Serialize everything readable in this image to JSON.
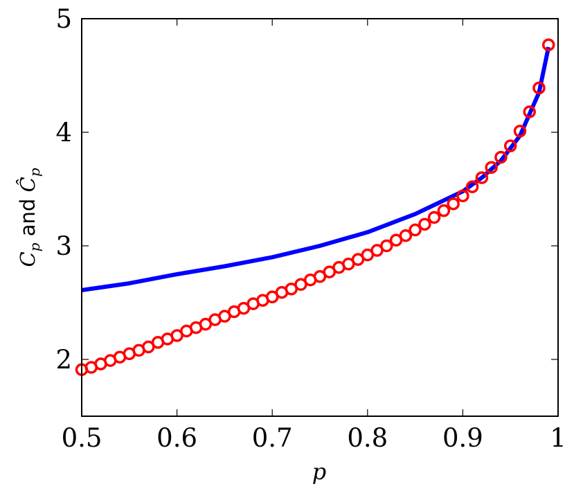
{
  "chart_data": {
    "type": "line",
    "xlabel": "p",
    "ylabel": "C_p and Ĉ_p",
    "ylabel_parts": {
      "c1": "C",
      "sub1": "p",
      "mid": " and ",
      "c2": "Ĉ",
      "sub2": "p"
    },
    "xlim": [
      0.5,
      0.99
    ],
    "ylim": [
      1.5,
      5.0
    ],
    "x_ticks": [
      0.5,
      0.6,
      0.7,
      0.8,
      0.9,
      1
    ],
    "x_tick_labels": [
      "0.5",
      "0.6",
      "0.7",
      "0.8",
      "0.9",
      "1"
    ],
    "y_ticks": [
      2,
      3,
      4,
      5
    ],
    "y_tick_labels": [
      "2",
      "3",
      "4",
      "5"
    ],
    "grid": false,
    "legend": false,
    "series": [
      {
        "style": "line",
        "color": "#0000ff",
        "x": [
          0.5,
          0.55,
          0.6,
          0.65,
          0.7,
          0.75,
          0.8,
          0.85,
          0.9,
          0.92,
          0.94,
          0.96,
          0.98,
          0.99
        ],
        "y": [
          2.61,
          2.67,
          2.75,
          2.82,
          2.9,
          3.0,
          3.12,
          3.28,
          3.48,
          3.6,
          3.75,
          3.97,
          4.35,
          4.75
        ]
      },
      {
        "style": "circle-markers",
        "color": "#ff0000",
        "x": [
          0.5,
          0.51,
          0.52,
          0.53,
          0.54,
          0.55,
          0.56,
          0.57,
          0.58,
          0.59,
          0.6,
          0.61,
          0.62,
          0.63,
          0.64,
          0.65,
          0.66,
          0.67,
          0.68,
          0.69,
          0.7,
          0.71,
          0.72,
          0.73,
          0.74,
          0.75,
          0.76,
          0.77,
          0.78,
          0.79,
          0.8,
          0.81,
          0.82,
          0.83,
          0.84,
          0.85,
          0.86,
          0.87,
          0.88,
          0.89,
          0.9,
          0.91,
          0.92,
          0.93,
          0.94,
          0.95,
          0.96,
          0.97,
          0.98,
          0.99
        ],
        "y": [
          1.91,
          1.93,
          1.96,
          1.99,
          2.02,
          2.05,
          2.08,
          2.11,
          2.15,
          2.18,
          2.21,
          2.25,
          2.28,
          2.31,
          2.35,
          2.38,
          2.42,
          2.45,
          2.49,
          2.52,
          2.55,
          2.59,
          2.62,
          2.66,
          2.7,
          2.73,
          2.77,
          2.81,
          2.84,
          2.88,
          2.92,
          2.96,
          3.0,
          3.05,
          3.09,
          3.14,
          3.19,
          3.25,
          3.31,
          3.37,
          3.44,
          3.52,
          3.6,
          3.69,
          3.78,
          3.88,
          4.01,
          4.18,
          4.39,
          4.77
        ]
      }
    ]
  }
}
